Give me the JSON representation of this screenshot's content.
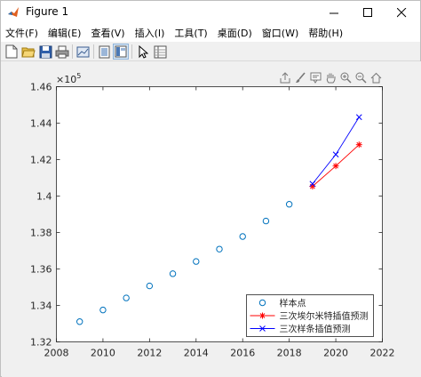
{
  "window": {
    "title": "Figure 1"
  },
  "menu": [
    {
      "label": "文件(F)"
    },
    {
      "label": "编辑(E)"
    },
    {
      "label": "查看(V)"
    },
    {
      "label": "插入(I)"
    },
    {
      "label": "工具(T)"
    },
    {
      "label": "桌面(D)"
    },
    {
      "label": "窗口(W)"
    },
    {
      "label": "帮助(H)"
    }
  ],
  "toolbar_icons": [
    "new-figure-icon",
    "open-file-icon",
    "save-icon",
    "print-icon",
    "link-plot-icon",
    "hide-plot-tools-icon",
    "show-plot-tools-icon",
    "edit-plot-icon",
    "property-inspector-icon"
  ],
  "axes_toolbar_icons": [
    "export-icon",
    "brush-icon",
    "datatip-icon",
    "pan-icon",
    "zoom-in-icon",
    "zoom-out-icon",
    "home-icon"
  ],
  "colors": {
    "sample": "#0072BD",
    "hermite": "#ff0000",
    "spline": "#0000ff"
  },
  "chart_data": {
    "type": "line",
    "exponent_label": "×10^5",
    "xlim": [
      2008,
      2022
    ],
    "ylim": [
      1.32,
      1.46
    ],
    "xticks": [
      "2008",
      "2010",
      "2012",
      "2014",
      "2016",
      "2018",
      "2020",
      "2022"
    ],
    "yticks": [
      "1.32",
      "1.34",
      "1.36",
      "1.38",
      "1.4",
      "1.42",
      "1.44",
      "1.46"
    ],
    "grid": false,
    "legend_position": "bottom-right",
    "series": [
      {
        "name": "样本点",
        "style": "markers-circle",
        "x": [
          2009,
          2010,
          2011,
          2012,
          2013,
          2014,
          2015,
          2016,
          2017,
          2018
        ],
        "y": [
          1.3311,
          1.3375,
          1.3441,
          1.3507,
          1.3574,
          1.3641,
          1.3709,
          1.3778,
          1.3863,
          1.3955
        ]
      },
      {
        "name": "三次埃尔米特插值预测",
        "style": "line-star",
        "x": [
          2019,
          2020,
          2021
        ],
        "y": [
          1.4053,
          1.4165,
          1.4282
        ]
      },
      {
        "name": "三次样条插值预测",
        "style": "line-x",
        "x": [
          2019,
          2020,
          2021
        ],
        "y": [
          1.4067,
          1.4228,
          1.4433
        ]
      }
    ]
  }
}
